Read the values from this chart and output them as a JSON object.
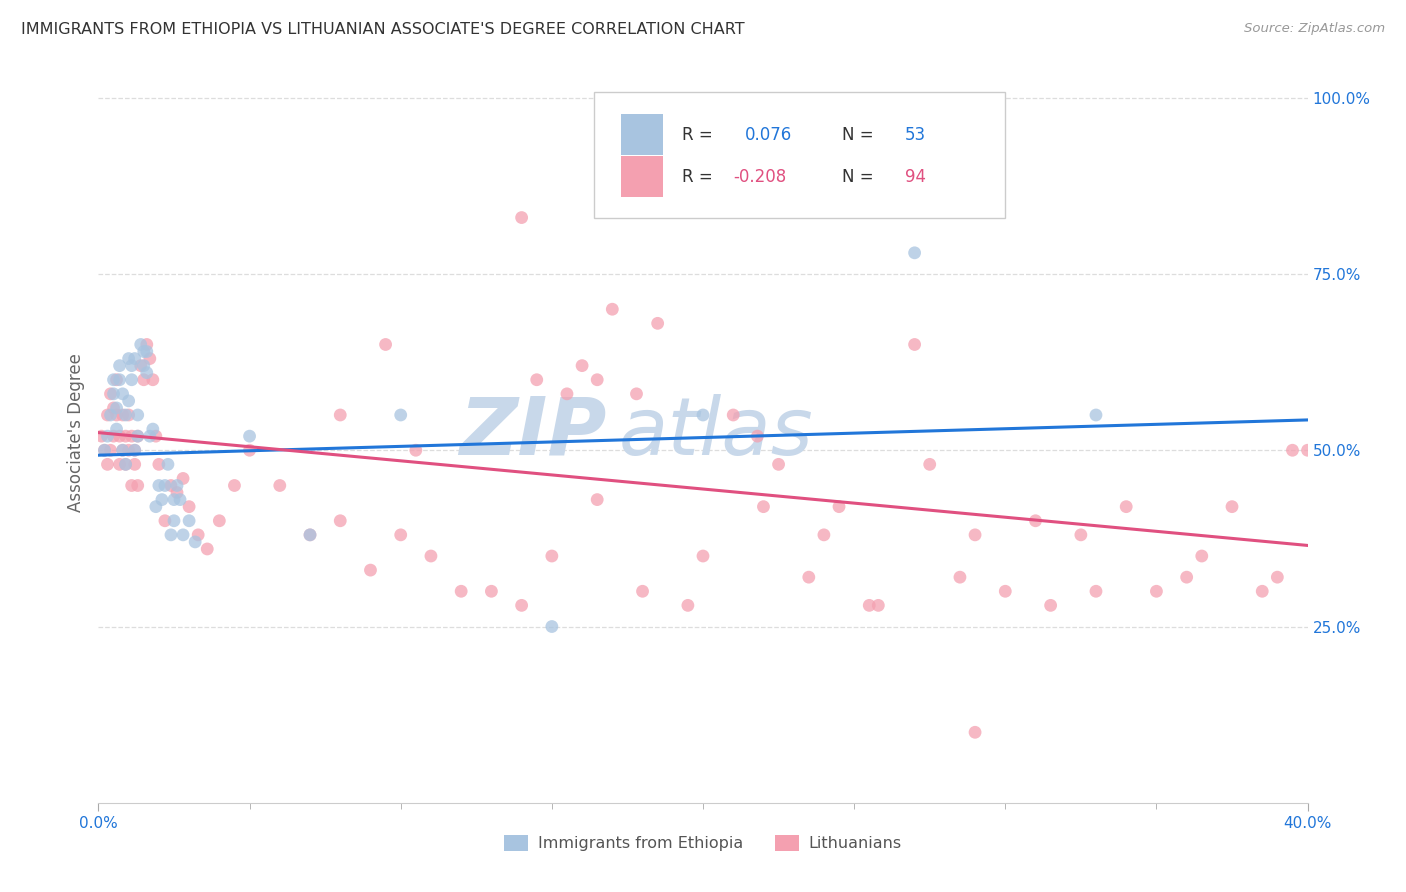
{
  "title": "IMMIGRANTS FROM ETHIOPIA VS LITHUANIAN ASSOCIATE'S DEGREE CORRELATION CHART",
  "source": "Source: ZipAtlas.com",
  "ylabel": "Associate's Degree",
  "right_yticks": [
    "100.0%",
    "75.0%",
    "50.0%",
    "25.0%"
  ],
  "right_ytick_vals": [
    1.0,
    0.75,
    0.5,
    0.25
  ],
  "legend_label1": "Immigrants from Ethiopia",
  "legend_label2": "Lithuanians",
  "blue_color": "#a8c4e0",
  "pink_color": "#f4a0b0",
  "blue_line_color": "#2176d9",
  "pink_line_color": "#e05080",
  "text_blue_color": "#2176d9",
  "watermark_text": "ZIP",
  "watermark_text2": "atlas",
  "watermark_color": "#c8d8ea",
  "background_color": "#ffffff",
  "grid_color": "#dddddd",
  "title_color": "#333333",
  "axis_label_color": "#666666",
  "right_axis_color": "#2176d9",
  "scatter_alpha": 0.75,
  "scatter_size": 85,
  "blue_x": [
    0.002,
    0.003,
    0.004,
    0.005,
    0.005,
    0.006,
    0.006,
    0.007,
    0.007,
    0.008,
    0.008,
    0.009,
    0.009,
    0.01,
    0.01,
    0.011,
    0.011,
    0.012,
    0.012,
    0.013,
    0.013,
    0.014,
    0.015,
    0.015,
    0.016,
    0.016,
    0.017,
    0.018,
    0.019,
    0.02,
    0.021,
    0.022,
    0.023,
    0.024,
    0.025,
    0.025,
    0.026,
    0.027,
    0.028,
    0.03,
    0.032,
    0.05,
    0.07,
    0.1,
    0.15,
    0.2,
    0.27,
    0.33
  ],
  "blue_y": [
    0.5,
    0.52,
    0.55,
    0.58,
    0.6,
    0.53,
    0.56,
    0.6,
    0.62,
    0.58,
    0.5,
    0.55,
    0.48,
    0.63,
    0.57,
    0.6,
    0.62,
    0.63,
    0.5,
    0.55,
    0.52,
    0.65,
    0.64,
    0.62,
    0.64,
    0.61,
    0.52,
    0.53,
    0.42,
    0.45,
    0.43,
    0.45,
    0.48,
    0.38,
    0.4,
    0.43,
    0.45,
    0.43,
    0.38,
    0.4,
    0.37,
    0.52,
    0.38,
    0.55,
    0.25,
    0.55,
    0.78,
    0.55
  ],
  "pink_x": [
    0.001,
    0.002,
    0.003,
    0.003,
    0.004,
    0.004,
    0.005,
    0.005,
    0.006,
    0.006,
    0.007,
    0.007,
    0.008,
    0.008,
    0.009,
    0.009,
    0.01,
    0.01,
    0.011,
    0.011,
    0.012,
    0.012,
    0.013,
    0.013,
    0.014,
    0.015,
    0.016,
    0.017,
    0.018,
    0.019,
    0.02,
    0.022,
    0.024,
    0.026,
    0.028,
    0.03,
    0.033,
    0.036,
    0.04,
    0.045,
    0.05,
    0.06,
    0.07,
    0.08,
    0.09,
    0.1,
    0.11,
    0.12,
    0.13,
    0.14,
    0.15,
    0.165,
    0.18,
    0.2,
    0.22,
    0.24,
    0.255,
    0.27,
    0.29,
    0.3,
    0.31,
    0.33,
    0.34,
    0.35,
    0.36,
    0.375,
    0.39,
    0.14,
    0.145,
    0.155,
    0.17,
    0.185,
    0.195,
    0.21,
    0.225,
    0.08,
    0.095,
    0.105,
    0.165,
    0.178,
    0.218,
    0.235,
    0.245,
    0.258,
    0.275,
    0.285,
    0.315,
    0.325,
    0.365,
    0.385,
    0.395,
    0.4,
    0.16,
    0.29
  ],
  "pink_y": [
    0.52,
    0.5,
    0.55,
    0.48,
    0.58,
    0.5,
    0.52,
    0.56,
    0.55,
    0.6,
    0.48,
    0.52,
    0.5,
    0.55,
    0.48,
    0.52,
    0.5,
    0.55,
    0.45,
    0.52,
    0.48,
    0.5,
    0.45,
    0.52,
    0.62,
    0.6,
    0.65,
    0.63,
    0.6,
    0.52,
    0.48,
    0.4,
    0.45,
    0.44,
    0.46,
    0.42,
    0.38,
    0.36,
    0.4,
    0.45,
    0.5,
    0.45,
    0.38,
    0.4,
    0.33,
    0.38,
    0.35,
    0.3,
    0.3,
    0.28,
    0.35,
    0.43,
    0.3,
    0.35,
    0.42,
    0.38,
    0.28,
    0.65,
    0.38,
    0.3,
    0.4,
    0.3,
    0.42,
    0.3,
    0.32,
    0.42,
    0.32,
    0.83,
    0.6,
    0.58,
    0.7,
    0.68,
    0.28,
    0.55,
    0.48,
    0.55,
    0.65,
    0.5,
    0.6,
    0.58,
    0.52,
    0.32,
    0.42,
    0.28,
    0.48,
    0.32,
    0.28,
    0.38,
    0.35,
    0.3,
    0.5,
    0.5,
    0.62,
    0.1
  ],
  "blue_line_x": [
    0.0,
    0.4
  ],
  "blue_line_y": [
    0.493,
    0.543
  ],
  "pink_line_x": [
    0.0,
    0.4
  ],
  "pink_line_y": [
    0.525,
    0.365
  ],
  "xlim": [
    0.0,
    0.4
  ],
  "ylim": [
    0.0,
    1.05
  ],
  "x_minor_ticks": [
    0.05,
    0.1,
    0.15,
    0.2,
    0.25,
    0.3,
    0.35
  ]
}
